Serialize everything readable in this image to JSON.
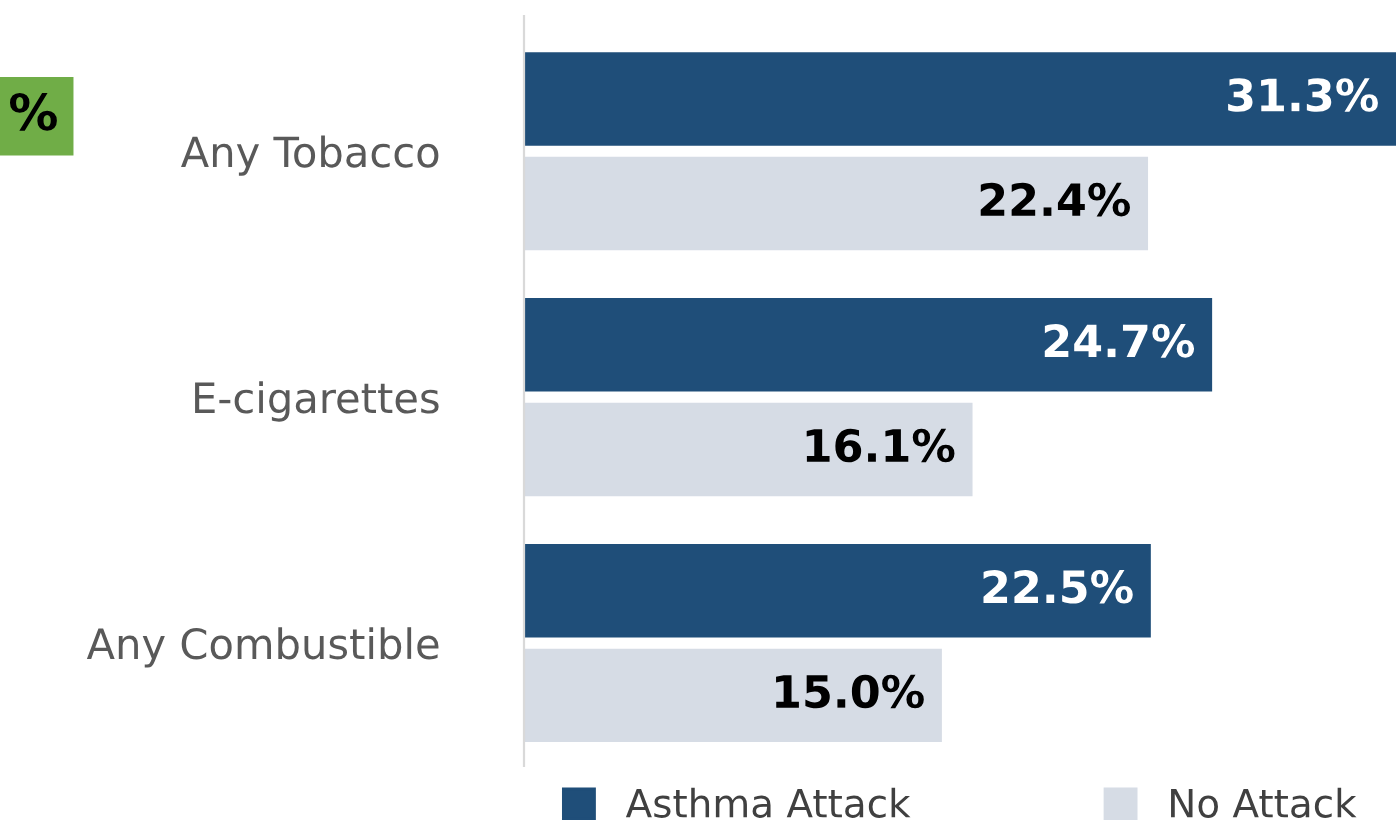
{
  "chart_data": {
    "type": "bar",
    "orientation": "horizontal",
    "categories": [
      "Any Tobacco",
      "E-cigarettes",
      "Any Combustible"
    ],
    "series": [
      {
        "name": "Asthma Attack",
        "color": "#1f4e79",
        "values": [
          31.3,
          24.7,
          22.5
        ],
        "value_labels": [
          "31.3%",
          "24.7%",
          "22.5%"
        ]
      },
      {
        "name": "No Attack",
        "color": "#d6dce5",
        "values": [
          22.4,
          16.1,
          15.0
        ],
        "value_labels": [
          "22.4%",
          "16.1%",
          "15.0%"
        ]
      }
    ],
    "annotations": [
      "%"
    ],
    "legend": "bottom",
    "grid": false,
    "tick_labels": "y"
  }
}
